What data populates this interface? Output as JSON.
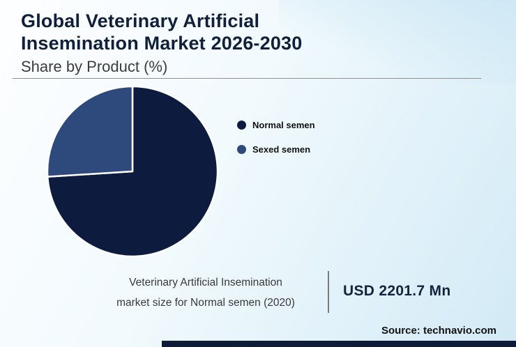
{
  "header": {
    "title_line1": "Global Veterinary Artificial",
    "title_line2": "Insemination Market 2026-2030",
    "subtitle": "Share by Product (%)"
  },
  "chart_data": {
    "type": "pie",
    "title": "Share by Product (%)",
    "labels": [
      "Normal semen",
      "Sexed semen"
    ],
    "values": [
      74,
      26
    ],
    "colors": [
      "#0d1b3e",
      "#2e4a7d"
    ],
    "start_angle_deg": -90,
    "direction": "clockwise",
    "legend_position": "right",
    "slice_outline_color": "#ffffff"
  },
  "legend": {
    "items": [
      {
        "label": "Normal semen",
        "color": "#0d1b3e"
      },
      {
        "label": "Sexed semen",
        "color": "#2e4a7d"
      }
    ]
  },
  "footer": {
    "note_line1": "Veterinary Artificial Insemination",
    "note_line2": "market size for Normal semen (2020)",
    "value": "USD 2201.7 Mn",
    "source": "Source: technavio.com"
  },
  "colors": {
    "title_text": "#10203a",
    "subtitle_text": "#3c3c3c",
    "value_text": "#16233c",
    "background_light": "#fdfeff",
    "background_blue": "#d2eaf6",
    "bottom_bar": "#0e1c3a"
  }
}
